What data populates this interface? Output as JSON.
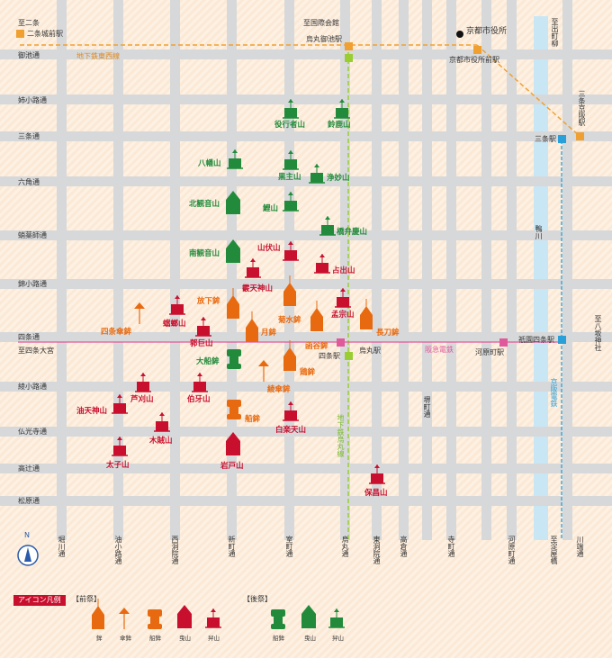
{
  "streets_h": {
    "oike": "御池通",
    "aneyakoji": "姉小路通",
    "sanjo": "三条通",
    "rokkaku": "六角通",
    "takoyakushi": "蛸薬師通",
    "nishikikoji": "錦小路通",
    "shijo": "四条通",
    "shijo_omiya": "至四条大宮",
    "ayanokoji": "綾小路通",
    "bukkoji": "仏光寺通",
    "takatsuji": "高辻通",
    "matsubara": "松原通"
  },
  "streets_v": {
    "horikawa": "堀川通",
    "aburanokoji": "油小路通",
    "nishinotoin": "西洞院通",
    "shinmachi": "新町通",
    "muromachi": "室町通",
    "karasuma": "烏丸通",
    "higashinotoin": "東洞院通",
    "takakura": "高倉通",
    "sakaimachi": "堺町通",
    "teramachi": "寺町通",
    "kawaramachi": "河原町通",
    "kawabata": "川端通",
    "kamogawa": "鴨川"
  },
  "places": {
    "to_nijo": "至二条",
    "nijojo_mae": "二条城前駅",
    "to_kokusai": "至国際会館",
    "karasuma_oike": "烏丸御池駅",
    "city_hall": "京都市役所",
    "city_hall_mae": "京都市役所前駅",
    "to_demachiyanagi": "至出町柳",
    "sanjo_keihan": "三条京阪駅",
    "sanjo_eki": "三条駅",
    "gion_shijo": "祇園四条駅",
    "kawaramachi_eki": "河原町駅",
    "shijo_eki": "四条駅",
    "karasuma_eki": "烏丸駅",
    "to_yasaka": "至八坂神社",
    "to_yodoyabashi": "至淀屋橋",
    "tozai_line": "地下鉄東西線",
    "karasuma_line": "地下鉄烏丸線",
    "hankyu_line": "阪急電鉄",
    "keihan_line": "京阪電鉄"
  },
  "floats": {
    "en_no_gyoja": "役行者山",
    "suzuka": "鈴鹿山",
    "hachiman": "八幡山",
    "kuronushi": "黒主山",
    "jomyo": "浄妙山",
    "kitakannon": "北観音山",
    "koi": "鯉山",
    "hashi_benkei": "橋弁慶山",
    "minamikannon": "南観音山",
    "yamabushi": "山伏山",
    "urade": "占出山",
    "kakkyo": "霰天神山",
    "hoka": "放下鉾",
    "toro": "蟷螂山",
    "shijokasa": "四条傘鉾",
    "kikusui": "菊水鉾",
    "moso": "孟宗山",
    "naginata": "長刀鉾",
    "tsuki": "月鉾",
    "kanko": "函谷鉾",
    "abura_tenjin_top": "郭巨山",
    "ofune": "大船鉾",
    "niwatori": "鶏鉾",
    "ayagasa": "綾傘鉾",
    "ashikari": "芦刈山",
    "hakuga": "伯牙山",
    "abura_tenjin": "油天神山",
    "fune": "船鉾",
    "hakurakuten": "白楽天山",
    "mokuzoku": "木賊山",
    "taishi": "太子山",
    "iwato": "岩戸山",
    "hosho": "保昌山"
  },
  "legend": {
    "title": "アイコン凡例",
    "zen": "【前祭】",
    "ato": "【後祭】",
    "hoko": "鉾",
    "kasahoko": "傘鉾",
    "funehoko": "船鉾",
    "hikiyama": "曳山",
    "kakiyama": "舁山",
    "ato_funehoko": "船鉾",
    "ato_hikiyama": "曳山",
    "ato_kakiyama": "舁山",
    "compass": "N"
  },
  "colors": {
    "zen_red": "#c8102e",
    "zen_orange": "#e86a10",
    "ato_green": "#228b3b",
    "hankyu": "#e05a9b",
    "tozai": "#f0a030",
    "karasuma": "#9acd32",
    "keihan": "#2aa0d8"
  }
}
